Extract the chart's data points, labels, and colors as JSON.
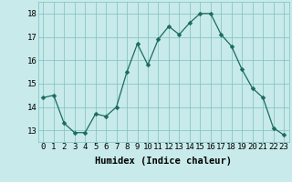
{
  "x": [
    0,
    1,
    2,
    3,
    4,
    5,
    6,
    7,
    8,
    9,
    10,
    11,
    12,
    13,
    14,
    15,
    16,
    17,
    18,
    19,
    20,
    21,
    22,
    23
  ],
  "y": [
    14.4,
    14.5,
    13.3,
    12.9,
    12.9,
    13.7,
    13.6,
    14.0,
    15.5,
    16.7,
    15.8,
    16.9,
    17.45,
    17.1,
    17.6,
    18.0,
    18.0,
    17.1,
    16.6,
    15.6,
    14.8,
    14.4,
    13.1,
    12.8
  ],
  "line_color": "#1a6b5e",
  "marker": "D",
  "marker_size": 2.5,
  "bg_color": "#c8eaea",
  "grid_color": "#7dbfbf",
  "xlabel": "Humidex (Indice chaleur)",
  "xlim": [
    -0.5,
    23.5
  ],
  "ylim": [
    12.5,
    18.5
  ],
  "yticks": [
    13,
    14,
    15,
    16,
    17,
    18
  ],
  "xticks": [
    0,
    1,
    2,
    3,
    4,
    5,
    6,
    7,
    8,
    9,
    10,
    11,
    12,
    13,
    14,
    15,
    16,
    17,
    18,
    19,
    20,
    21,
    22,
    23
  ],
  "xtick_labels": [
    "0",
    "1",
    "2",
    "3",
    "4",
    "5",
    "6",
    "7",
    "8",
    "9",
    "10",
    "11",
    "12",
    "13",
    "14",
    "15",
    "16",
    "17",
    "18",
    "19",
    "20",
    "21",
    "22",
    "23"
  ],
  "tick_fontsize": 6.5,
  "xlabel_fontsize": 7.5
}
